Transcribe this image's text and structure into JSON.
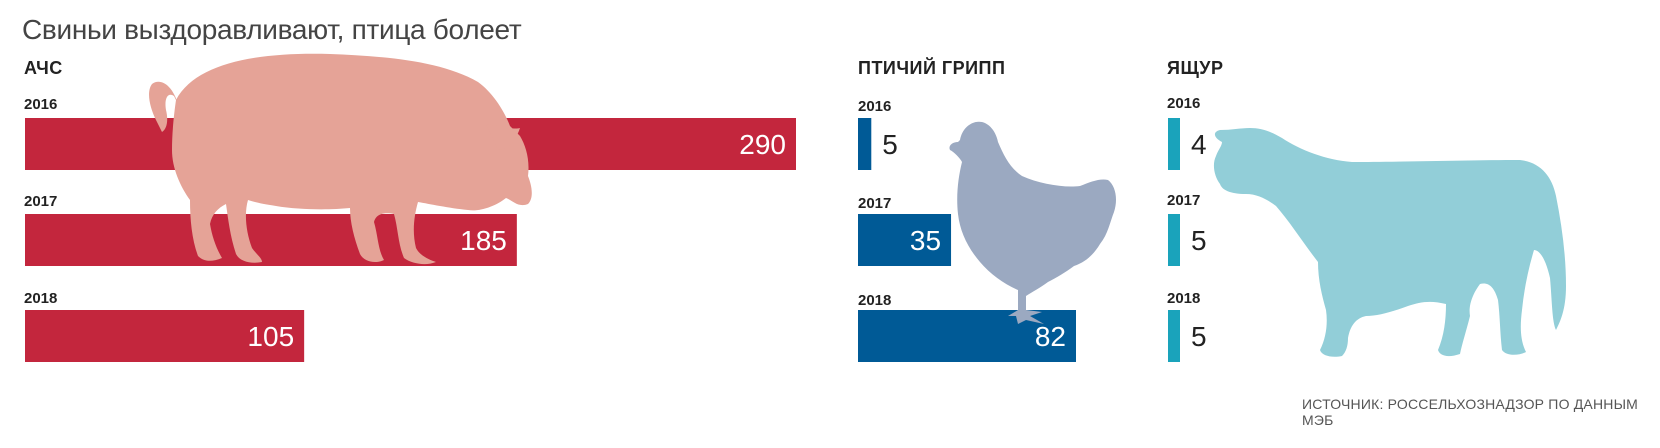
{
  "title": "Свиньи выздоравливают, птица болеет",
  "source": "ИСТОЧНИК: РОССЕЛЬХОЗНАДЗОР ПО ДАННЫМ МЭБ",
  "colors": {
    "asf": "#c3263d",
    "avian_flu": "#005a96",
    "fmd": "#1aa3bb",
    "pig": "#e5a397",
    "chicken": "#9ba9c1",
    "cow": "#92ced8"
  },
  "icons": [
    "pig-icon",
    "chicken-icon",
    "cow-icon"
  ],
  "chart_data": [
    {
      "type": "bar",
      "orientation": "horizontal",
      "title": "АЧС",
      "categories": [
        "2016",
        "2017",
        "2018"
      ],
      "values": [
        290,
        185,
        105
      ]
    },
    {
      "type": "bar",
      "orientation": "horizontal",
      "title": "ПТИЧИЙ ГРИПП",
      "categories": [
        "2016",
        "2017",
        "2018"
      ],
      "values": [
        5,
        35,
        82
      ]
    },
    {
      "type": "bar",
      "orientation": "horizontal",
      "title": "ЯЩУР",
      "categories": [
        "2016",
        "2017",
        "2018"
      ],
      "values": [
        4,
        5,
        5
      ]
    }
  ]
}
